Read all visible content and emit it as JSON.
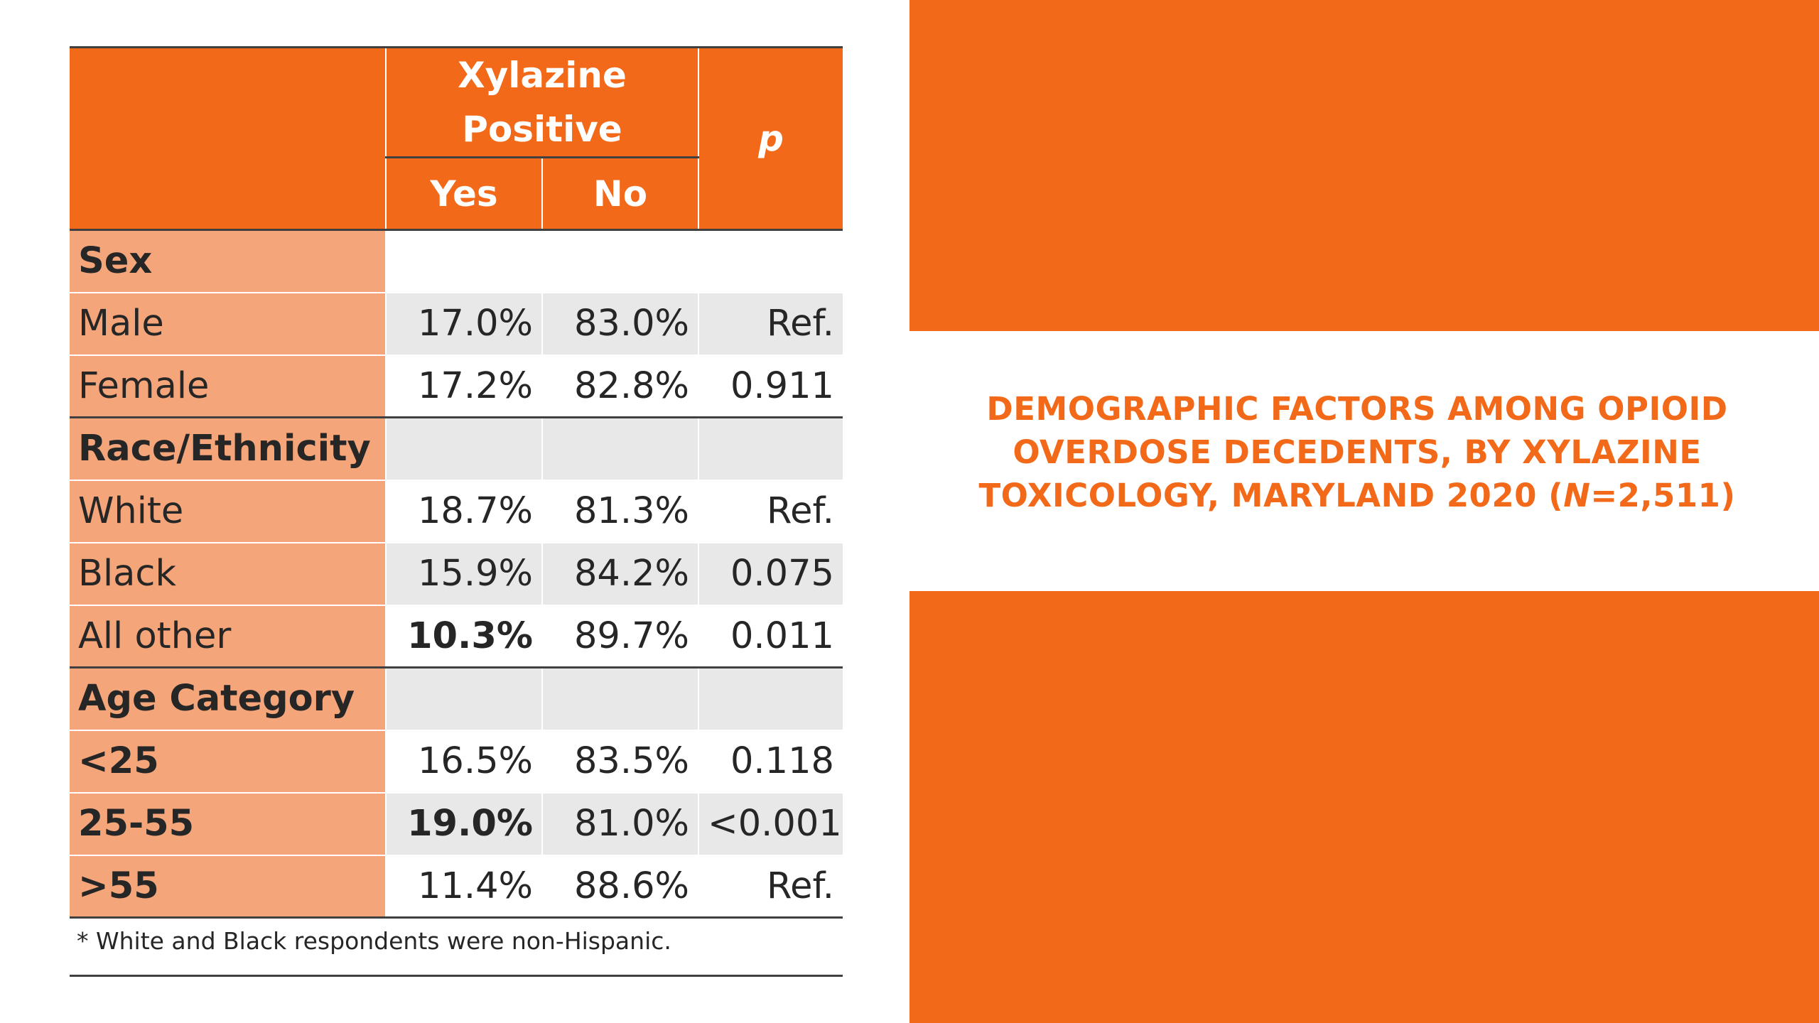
{
  "title": {
    "line1": "DEMOGRAPHIC FACTORS AMONG OPIOID",
    "line2": "OVERDOSE DECEDENTS, BY XYLAZINE",
    "line3_pre": "TOXICOLOGY, MARYLAND 2020 (",
    "line3_italic": "N",
    "line3_post": "=2,511)"
  },
  "colors": {
    "accent": "#f26a19",
    "label_bg": "#f5a57a",
    "shade": "#e8e8e8"
  },
  "table": {
    "header": {
      "group_label_line1": "Xylazine",
      "group_label_line2": "Positive",
      "yes": "Yes",
      "no": "No",
      "p": "p"
    },
    "rows": [
      {
        "label": "Sex",
        "yes": "",
        "no": "",
        "p": ""
      },
      {
        "label": "Male",
        "yes": "17.0%",
        "no": "83.0%",
        "p": "Ref."
      },
      {
        "label": "Female",
        "yes": "17.2%",
        "no": "82.8%",
        "p": "0.911"
      },
      {
        "label": "Race/Ethnicity",
        "yes": "",
        "no": "",
        "p": ""
      },
      {
        "label": "White",
        "yes": "18.7%",
        "no": "81.3%",
        "p": "Ref."
      },
      {
        "label": "Black",
        "yes": "15.9%",
        "no": "84.2%",
        "p": "0.075"
      },
      {
        "label": "All other",
        "yes": "10.3%",
        "no": "89.7%",
        "p": "0.011"
      },
      {
        "label": "Age Category",
        "yes": "",
        "no": "",
        "p": ""
      },
      {
        "label": "<25",
        "yes": "16.5%",
        "no": "83.5%",
        "p": "0.118"
      },
      {
        "label": "25-55",
        "yes": "19.0%",
        "no": "81.0%",
        "p": "<0.001"
      },
      {
        "label": ">55",
        "yes": "11.4%",
        "no": "88.6%",
        "p": "Ref."
      }
    ]
  },
  "footnote": "* White and Black respondents were non-Hispanic."
}
